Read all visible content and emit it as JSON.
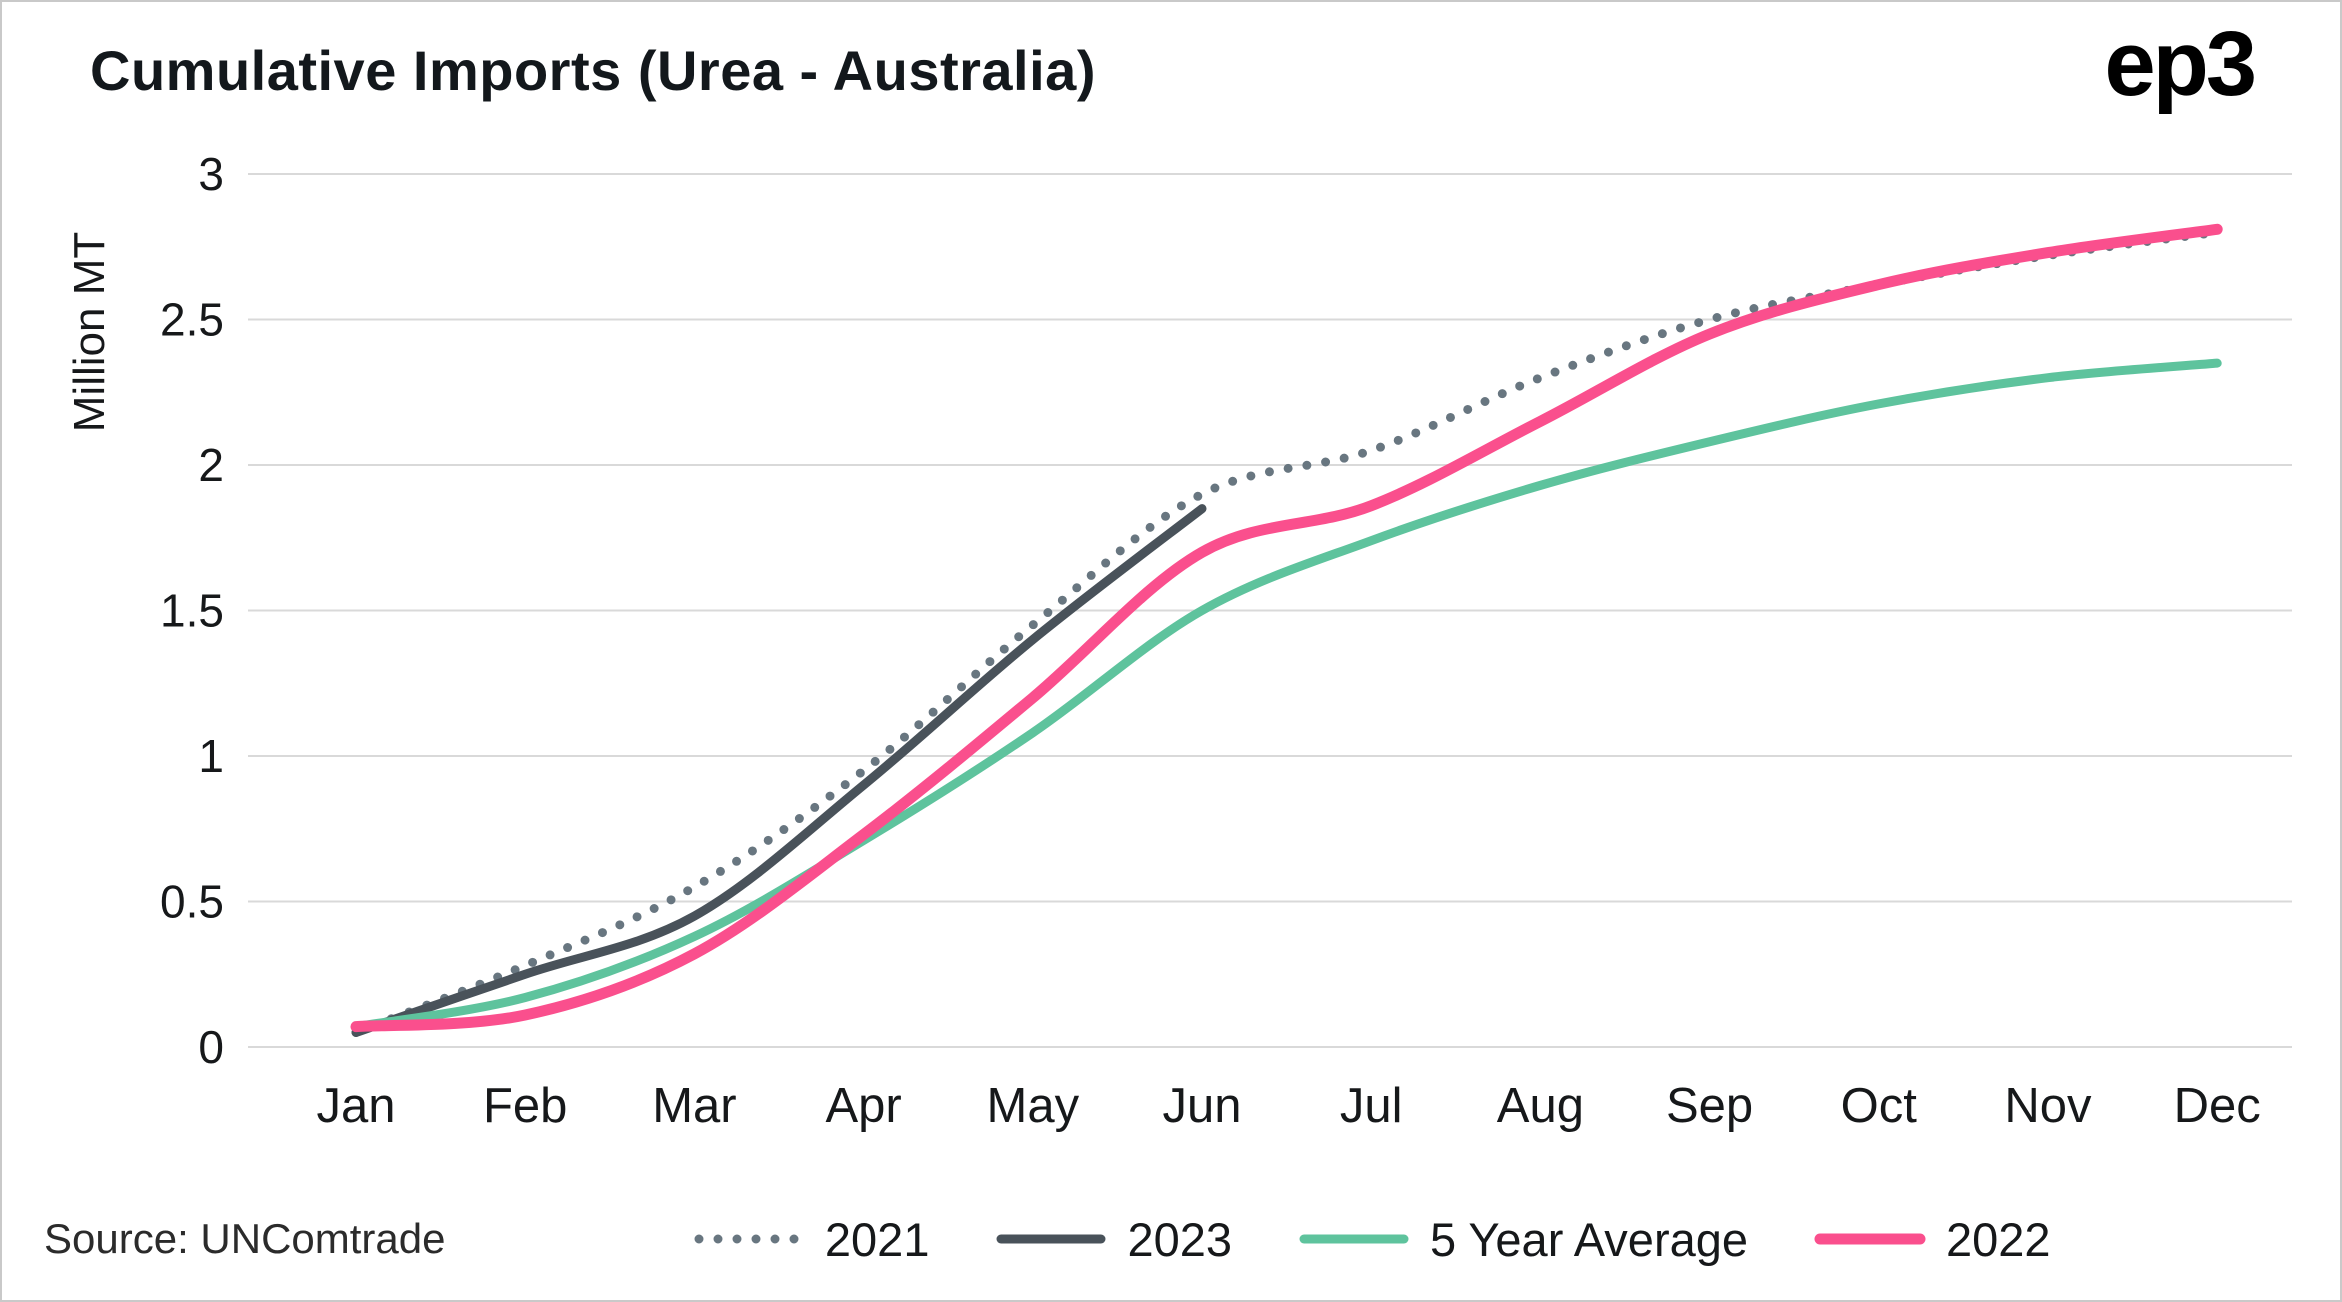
{
  "title": "Cumulative Imports (Urea - Australia)",
  "branding": {
    "logo": "ep3"
  },
  "source": {
    "text": "Source: UNComtrade"
  },
  "chart_data": {
    "type": "line",
    "title": "Cumulative Imports (Urea - Australia)",
    "xlabel": "",
    "ylabel": "Million MT",
    "ylim": [
      0,
      3
    ],
    "yticks": [
      0,
      0.5,
      1,
      1.5,
      2,
      2.5,
      3
    ],
    "grid": "horizontal",
    "legend_position": "bottom",
    "categories": [
      "Jan",
      "Feb",
      "Mar",
      "Apr",
      "May",
      "Jun",
      "Jul",
      "Aug",
      "Sep",
      "Oct",
      "Nov",
      "Dec"
    ],
    "series": [
      {
        "name": "2021",
        "color": "#687680",
        "style": "dotted",
        "values": [
          0.05,
          0.28,
          0.55,
          0.95,
          1.45,
          1.9,
          2.05,
          2.3,
          2.5,
          2.62,
          2.72,
          2.8
        ]
      },
      {
        "name": "2023",
        "color": "#49525a",
        "style": "solid",
        "values": [
          0.05,
          0.25,
          0.45,
          0.9,
          1.4,
          1.85
        ]
      },
      {
        "name": "5 Year Average",
        "color": "#5ec39d",
        "style": "solid",
        "values": [
          0.07,
          0.17,
          0.38,
          0.71,
          1.08,
          1.5,
          1.74,
          1.93,
          2.08,
          2.21,
          2.3,
          2.35
        ]
      },
      {
        "name": "2022",
        "color": "#fa4f8d",
        "style": "solid",
        "values": [
          0.07,
          0.11,
          0.32,
          0.73,
          1.2,
          1.7,
          1.86,
          2.15,
          2.45,
          2.62,
          2.73,
          2.81
        ]
      }
    ]
  }
}
